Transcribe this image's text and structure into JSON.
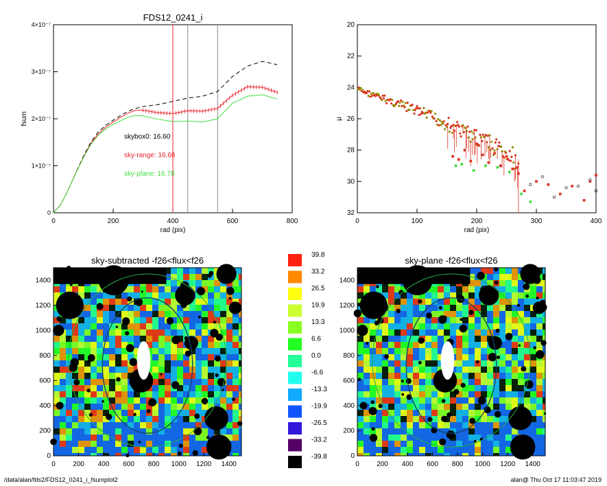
{
  "footer": {
    "path": "/data/alan/fds2/FDS12_0241_i_fsumplot2",
    "stamp": "alan@  Thu Oct 17 11:03:47 2019"
  },
  "colors": {
    "black_curve": "#000000",
    "red_curve": "#e8202a",
    "green_curve": "#44dd44",
    "vline_red": "#e8202a",
    "vline_gray": "#888888"
  },
  "chart_data": [
    {
      "type": "line",
      "title": "FDS12_0241_i",
      "xlabel": "rad (pix)",
      "ylabel": "fsum",
      "xlim": [
        0,
        800
      ],
      "ylim": [
        0,
        4e-07
      ],
      "xticks": [
        "0",
        "200",
        "400",
        "600",
        "800"
      ],
      "yticks": [
        "0",
        "1×10⁻⁷",
        "2×10⁻⁷",
        "3×10⁻⁷",
        "4×10⁻⁷"
      ],
      "vlines": {
        "red": [
          400
        ],
        "gray": [
          450,
          550
        ]
      },
      "annotations": [
        {
          "text": "skybox0: 16.60",
          "color": "black"
        },
        {
          "text": "sky-range: 16.68",
          "color": "red"
        },
        {
          "text": "sky-plane: 16.78",
          "color": "green"
        }
      ],
      "series": [
        {
          "style": "dashed",
          "color": "black",
          "x": [
            0,
            25,
            50,
            75,
            100,
            125,
            150,
            175,
            200,
            225,
            250,
            275,
            300,
            350,
            400,
            450,
            500,
            550,
            600,
            650,
            700,
            750
          ],
          "y": [
            0,
            1.8e-08,
            5e-08,
            8.5e-08,
            1.2e-07,
            1.5e-07,
            1.72e-07,
            1.86e-07,
            1.97e-07,
            2.07e-07,
            2.16e-07,
            2.22e-07,
            2.26e-07,
            2.3e-07,
            2.37e-07,
            2.44e-07,
            2.48e-07,
            2.58e-07,
            2.9e-07,
            3.12e-07,
            3.22e-07,
            3.15e-07
          ]
        },
        {
          "style": "line+errorbars",
          "color": "red",
          "x": [
            0,
            25,
            50,
            75,
            100,
            125,
            150,
            175,
            200,
            225,
            250,
            275,
            300,
            350,
            400,
            450,
            500,
            550,
            600,
            650,
            700,
            750
          ],
          "y": [
            0,
            1.8e-08,
            5e-08,
            8.5e-08,
            1.18e-07,
            1.47e-07,
            1.68e-07,
            1.82e-07,
            1.93e-07,
            2.03e-07,
            2.12e-07,
            2.18e-07,
            2.18e-07,
            2.13e-07,
            2.11e-07,
            2.17e-07,
            2.16e-07,
            2.22e-07,
            2.5e-07,
            2.68e-07,
            2.67e-07,
            2.56e-07
          ]
        },
        {
          "style": "solid",
          "color": "green",
          "x": [
            0,
            25,
            50,
            75,
            100,
            125,
            150,
            175,
            200,
            225,
            250,
            275,
            300,
            350,
            400,
            450,
            500,
            550,
            600,
            650,
            700,
            750
          ],
          "y": [
            0,
            1.8e-08,
            5e-08,
            8.4e-08,
            1.17e-07,
            1.45e-07,
            1.65e-07,
            1.78e-07,
            1.88e-07,
            1.96e-07,
            2.03e-07,
            2.07e-07,
            2.06e-07,
            1.99e-07,
            1.94e-07,
            1.95e-07,
            1.93e-07,
            2e-07,
            2.33e-07,
            2.48e-07,
            2.51e-07,
            2.42e-07
          ]
        }
      ]
    },
    {
      "type": "scatter",
      "title": "",
      "xlabel": "rad (pix)",
      "ylabel": "μ",
      "xlim": [
        0,
        400
      ],
      "ylim": [
        32,
        20
      ],
      "xticks": [
        "0",
        "100",
        "200",
        "300",
        "400"
      ],
      "yticks": [
        "20",
        "22",
        "24",
        "26",
        "28",
        "30",
        "32"
      ],
      "trend": {
        "x": [
          0,
          20,
          50,
          100,
          150,
          200,
          250,
          280
        ],
        "y": [
          24.1,
          24.4,
          24.8,
          25.5,
          26.3,
          27.2,
          28.2,
          29.0
        ]
      },
      "series": [
        {
          "name": "",
          "color": "red",
          "x": [
            160,
            170,
            180,
            190,
            200,
            210,
            220,
            230,
            240,
            250,
            260,
            270,
            280,
            300,
            320,
            340,
            360,
            380,
            390,
            400
          ],
          "y": [
            28.4,
            28.6,
            28.0,
            28.7,
            27.6,
            28.3,
            28.8,
            28.2,
            29.0,
            28.4,
            29.2,
            29.5,
            30.6,
            30.0,
            30.2,
            30.8,
            30.3,
            31.2,
            30.0,
            29.6
          ]
        },
        {
          "name": "",
          "color": "green",
          "x": [
            165,
            175,
            195,
            215,
            235,
            255,
            275,
            290
          ],
          "y": [
            29.0,
            28.9,
            29.3,
            29.0,
            29.1,
            29.4,
            30.8,
            31.3
          ]
        },
        {
          "name": "",
          "color": "black",
          "x": [
            290,
            310,
            330,
            350,
            370,
            390,
            400
          ],
          "y": [
            30.2,
            29.7,
            31.0,
            30.4,
            30.3,
            29.9,
            30.6
          ]
        }
      ]
    },
    {
      "type": "heatmap",
      "title": "sky-subtracted -f26<flux<f26",
      "xlim": [
        0,
        1500
      ],
      "ylim": [
        0,
        1500
      ],
      "xticks": [
        "0",
        "200",
        "400",
        "600",
        "800",
        "1000",
        "1200",
        "1400"
      ],
      "yticks": [
        "0",
        "200",
        "400",
        "600",
        "800",
        "1000",
        "1200",
        "1400"
      ]
    },
    {
      "type": "heatmap",
      "title": "sky-plane -f26<flux<f26",
      "xlim": [
        0,
        1500
      ],
      "ylim": [
        0,
        1500
      ],
      "xticks": [
        "0",
        "200",
        "400",
        "600",
        "800",
        "1000",
        "1200",
        "1400"
      ],
      "yticks": [
        "0",
        "200",
        "400",
        "600",
        "800",
        "1000",
        "1200",
        "1400"
      ]
    }
  ],
  "colorbar": {
    "levels": [
      "39.8",
      "33.2",
      "26.5",
      "19.9",
      "13.3",
      "6.6",
      "0.0",
      "-6.6",
      "-13.3",
      "-19.9",
      "-26.5",
      "-33.2",
      "-39.8"
    ],
    "colors": [
      "#ff2010",
      "#ff8800",
      "#ffff10",
      "#ccff30",
      "#88ff20",
      "#22ff22",
      "#22ff99",
      "#22ffee",
      "#10aaff",
      "#1055ff",
      "#3318dd",
      "#550066",
      "#000000"
    ]
  }
}
